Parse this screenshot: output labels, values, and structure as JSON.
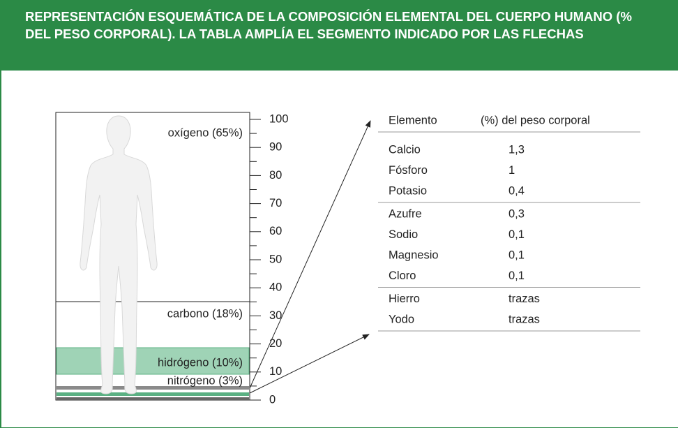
{
  "header": {
    "title": "REPRESENTACIÓN ESQUEMÁTICA DE LA COMPOSICIÓN ELEMENTAL DEL CUERPO HUMANO (% DEL PESO CORPORAL). LA TABLA AMPLÍA EL SEGMENTO INDICADO POR LAS FLECHAS"
  },
  "figure": {
    "scale": {
      "range": [
        0,
        100
      ],
      "ticks": [
        100,
        90,
        80,
        70,
        60,
        50,
        40,
        30,
        20,
        10,
        0
      ]
    },
    "segments": [
      "oxígeno (65%)",
      "carbono (18%)",
      "hidrógeno (10%)",
      "nitrógeno (3%)"
    ]
  },
  "table": {
    "columns": [
      "Elemento",
      "(%) del peso corporal"
    ],
    "groups": [
      {
        "rows": [
          [
            "Calcio",
            "1,3"
          ],
          [
            "Fósforo",
            "1"
          ],
          [
            "Potasio",
            "0,4"
          ]
        ]
      },
      {
        "rows": [
          [
            "Azufre",
            "0,3"
          ],
          [
            "Sodio",
            "0,1"
          ],
          [
            "Magnesio",
            "0,1"
          ],
          [
            "Cloro",
            "0,1"
          ]
        ]
      },
      {
        "rows": [
          [
            "Hierro",
            "trazas"
          ],
          [
            "Yodo",
            "trazas"
          ]
        ]
      }
    ]
  }
}
